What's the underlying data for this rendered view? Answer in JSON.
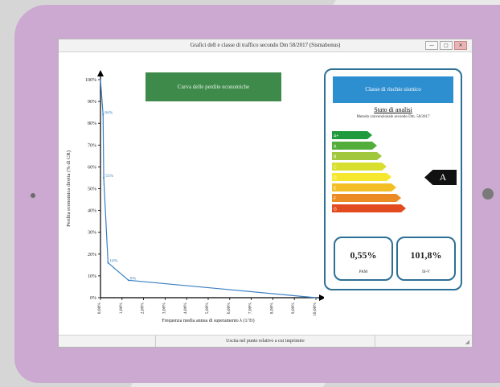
{
  "window": {
    "title": "Grafici dell e classe di traffico secondo Dm 58/2017 (Sismabonus)",
    "buttons": [
      "—",
      "□",
      "✕"
    ],
    "status_text": "Uscita nel punto relativo a cui imprimire"
  },
  "buttons": {
    "loss_curve": "Curva delle perdite economiche",
    "risk_class": "Classe di rischio sismico"
  },
  "panel": {
    "title": "Stato di analisi",
    "subtitle": "Metodo convenzionale secondo Dm. 58/2017",
    "energy_classes": [
      "A+",
      "A",
      "B",
      "C",
      "D",
      "E",
      "F",
      "G"
    ],
    "class_colors": [
      "#1f9a3c",
      "#53ad3a",
      "#a1c83c",
      "#d8df2f",
      "#f6e82e",
      "#f4bf26",
      "#ec8a23",
      "#e24a20"
    ],
    "current_class": "A",
    "pam": {
      "value": "0,55%",
      "label": "PAM"
    },
    "isv": {
      "value": "101,8%",
      "label": "IS-V"
    }
  },
  "chart_data": {
    "type": "line",
    "ylabel": "Perdita economica diretta (% di CR)",
    "xlabel": "Frequenza media annua di superamento λ (1/Tr)",
    "yticks": [
      "0%",
      "10%",
      "20%",
      "30%",
      "40%",
      "50%",
      "60%",
      "70%",
      "80%",
      "90%",
      "100%"
    ],
    "ylim": [
      0,
      100
    ],
    "xticks": [
      "0,00%",
      "1,00%",
      "2,00%",
      "3,00%",
      "4,00%",
      "5,00%",
      "6,00%",
      "7,00%",
      "8,00%",
      "9,00%",
      "10,00%"
    ],
    "xlim": [
      0,
      10
    ],
    "series": [
      {
        "x": [
          0.0,
          0.12,
          0.15,
          0.35,
          1.3,
          10
        ],
        "y": [
          100,
          84,
          55,
          16,
          8,
          0
        ],
        "labels": [
          "",
          "84%",
          "55%",
          "16%",
          "8%",
          ""
        ]
      }
    ],
    "color": "#3a7fc0"
  }
}
